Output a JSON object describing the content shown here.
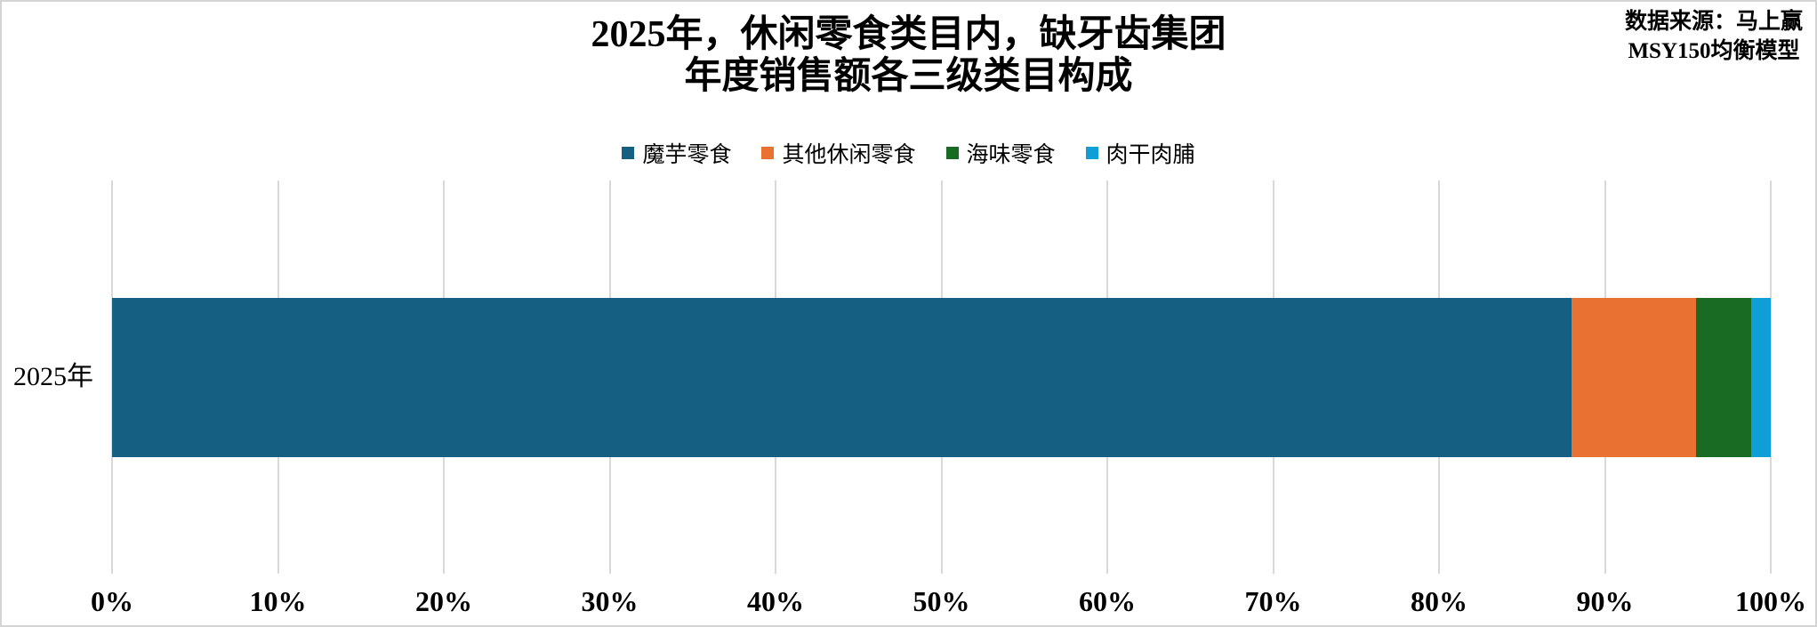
{
  "window": {
    "background": "#FFFFFF",
    "border_color": "#D4D4D4",
    "text_color": "#000000"
  },
  "title": {
    "line1": "2025年，休闲零食类目内，缺牙齿集团",
    "line2": "年度销售额各三级类目构成"
  },
  "source": {
    "line1": "数据来源：马上赢",
    "line2": "MSY150均衡模型"
  },
  "y_axis": {
    "category": "2025年"
  },
  "chart_data": {
    "type": "bar",
    "orientation": "horizontal_stacked",
    "title": "2025年，休闲零食类目内，缺牙齿集团 年度销售额各三级类目构成",
    "source": "数据来源：马上赢 MSY150均衡模型",
    "categories": [
      "2025年"
    ],
    "series": [
      {
        "name": "魔芋零食",
        "color": "#156082",
        "values": [
          88.0
        ]
      },
      {
        "name": "其他休闲零食",
        "color": "#E97132",
        "values": [
          7.5
        ]
      },
      {
        "name": "海味零食",
        "color": "#196B24",
        "values": [
          3.3
        ]
      },
      {
        "name": "肉干肉脯",
        "color": "#0F9ED5",
        "values": [
          1.2
        ]
      }
    ],
    "xlim": [
      0,
      100
    ],
    "x_tick_labels": [
      "0%",
      "10%",
      "20%",
      "30%",
      "40%",
      "50%",
      "60%",
      "70%",
      "80%",
      "90%",
      "100%"
    ],
    "grid": true,
    "gridline_color": "#D9D9D9",
    "legend_position": "top",
    "xlabel": "",
    "ylabel": ""
  }
}
